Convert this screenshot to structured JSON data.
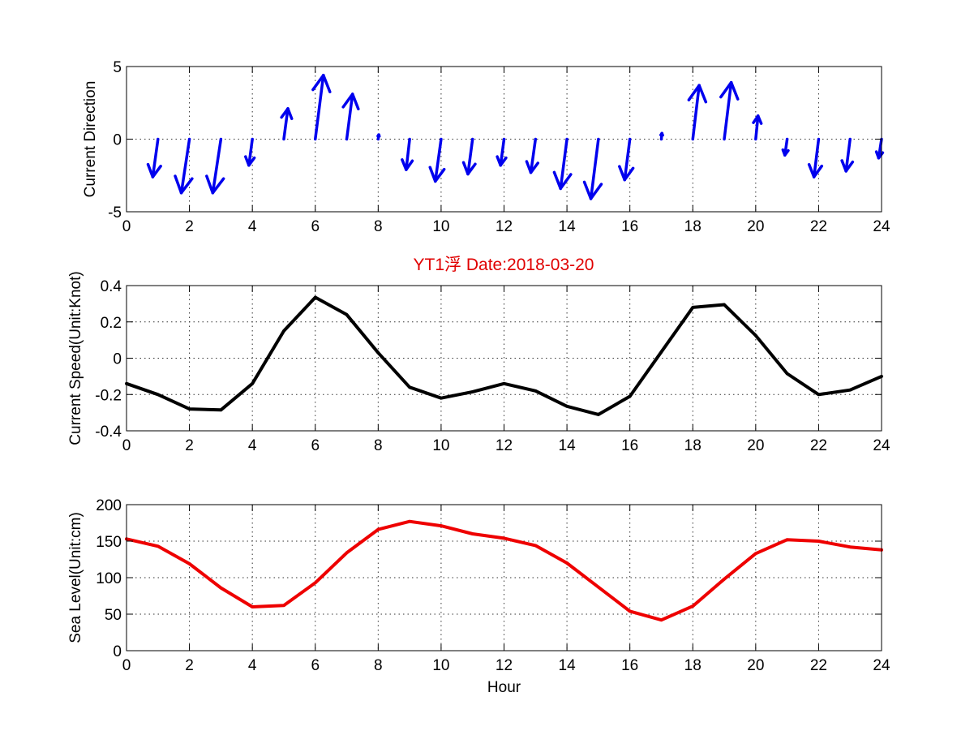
{
  "figure": {
    "title": "YT1浮    Date:2018-03-20",
    "title_color": "#e00000"
  },
  "chart_data": [
    {
      "type": "quiver",
      "ylabel": "Current Direction",
      "xlabel": "",
      "xlim": [
        0,
        24
      ],
      "ylim": [
        -5,
        5
      ],
      "xticks": [
        "0",
        "2",
        "4",
        "6",
        "8",
        "10",
        "12",
        "14",
        "16",
        "18",
        "20",
        "22",
        "24"
      ],
      "yticks": [
        "5",
        "0",
        "-5"
      ],
      "grid": true,
      "color": "#0000ee",
      "vectors": [
        {
          "x": 0,
          "u": 0,
          "v": 0
        },
        {
          "x": 1,
          "u": -0.45,
          "v": -2.6
        },
        {
          "x": 2,
          "u": -0.7,
          "v": -3.7
        },
        {
          "x": 3,
          "u": -0.7,
          "v": -3.7
        },
        {
          "x": 4,
          "u": -0.3,
          "v": -1.8
        },
        {
          "x": 5,
          "u": 0.35,
          "v": 2.1
        },
        {
          "x": 6,
          "u": 0.7,
          "v": 4.4
        },
        {
          "x": 7,
          "u": 0.5,
          "v": 3.1
        },
        {
          "x": 8,
          "u": 0.05,
          "v": 0.3
        },
        {
          "x": 9,
          "u": -0.3,
          "v": -2.1
        },
        {
          "x": 10,
          "u": -0.5,
          "v": -2.9
        },
        {
          "x": 11,
          "u": -0.4,
          "v": -2.4
        },
        {
          "x": 12,
          "u": -0.3,
          "v": -1.8
        },
        {
          "x": 13,
          "u": -0.4,
          "v": -2.3
        },
        {
          "x": 14,
          "u": -0.55,
          "v": -3.4
        },
        {
          "x": 15,
          "u": -0.65,
          "v": -4.1
        },
        {
          "x": 16,
          "u": -0.45,
          "v": -2.8
        },
        {
          "x": 17,
          "u": 0.05,
          "v": 0.4
        },
        {
          "x": 18,
          "u": 0.55,
          "v": 3.7
        },
        {
          "x": 19,
          "u": 0.6,
          "v": 3.9
        },
        {
          "x": 20,
          "u": 0.2,
          "v": 1.6
        },
        {
          "x": 21,
          "u": -0.2,
          "v": -1.1
        },
        {
          "x": 22,
          "u": -0.4,
          "v": -2.6
        },
        {
          "x": 23,
          "u": -0.35,
          "v": -2.2
        },
        {
          "x": 24,
          "u": -0.25,
          "v": -1.3
        }
      ]
    },
    {
      "type": "line",
      "ylabel": "Current Speed(Unit:Knot)",
      "xlabel": "",
      "xlim": [
        0,
        24
      ],
      "ylim": [
        -0.4,
        0.4
      ],
      "xticks": [
        "0",
        "2",
        "4",
        "6",
        "8",
        "10",
        "12",
        "14",
        "16",
        "18",
        "20",
        "22",
        "24"
      ],
      "yticks": [
        "0.4",
        "0.2",
        "0",
        "-0.2",
        "-0.4"
      ],
      "grid": true,
      "color": "#000000",
      "x": [
        0,
        1,
        2,
        3,
        4,
        5,
        6,
        7,
        8,
        9,
        10,
        11,
        12,
        13,
        14,
        15,
        16,
        17,
        18,
        19,
        20,
        21,
        22,
        23,
        24
      ],
      "y": [
        -0.14,
        -0.2,
        -0.28,
        -0.285,
        -0.14,
        0.15,
        0.335,
        0.24,
        0.03,
        -0.16,
        -0.22,
        -0.185,
        -0.14,
        -0.18,
        -0.265,
        -0.31,
        -0.21,
        0.035,
        0.28,
        0.295,
        0.125,
        -0.085,
        -0.2,
        -0.175,
        -0.1
      ]
    },
    {
      "type": "line",
      "ylabel": "Sea Level(Unit:cm)",
      "xlabel": "Hour",
      "xlim": [
        0,
        24
      ],
      "ylim": [
        0,
        200
      ],
      "xticks": [
        "0",
        "2",
        "4",
        "6",
        "8",
        "10",
        "12",
        "14",
        "16",
        "18",
        "20",
        "22",
        "24"
      ],
      "yticks": [
        "200",
        "150",
        "100",
        "50",
        "0"
      ],
      "grid": true,
      "color": "#ee0000",
      "x": [
        0,
        1,
        2,
        3,
        4,
        5,
        6,
        7,
        8,
        9,
        10,
        11,
        12,
        13,
        14,
        15,
        16,
        17,
        18,
        19,
        20,
        21,
        22,
        23,
        24
      ],
      "y": [
        153,
        143,
        119,
        86,
        60,
        62,
        93,
        134,
        166,
        177,
        171,
        160,
        154,
        144,
        120,
        87,
        54,
        42,
        61,
        98,
        133,
        152,
        150,
        142,
        138
      ]
    }
  ]
}
